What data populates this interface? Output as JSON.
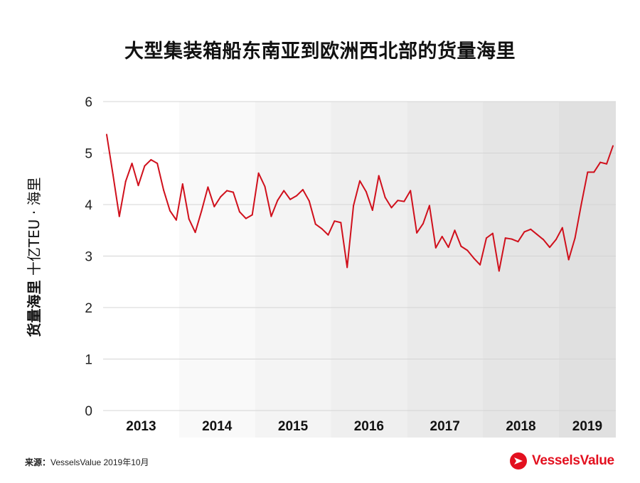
{
  "title": "大型集装箱船东南亚到欧洲西北部的货量海里",
  "source": {
    "label": "来源：",
    "text": "VesselsValue 2019年10月"
  },
  "logo": {
    "text": "VesselsValue",
    "color": "#e3101f"
  },
  "chart_data": {
    "type": "line",
    "title": "大型集装箱船东南亚到欧洲西北部的货量海里",
    "ylabel_bold": "货量海里",
    "ylabel_rest": " 十亿TEU · 海里",
    "ylim": [
      0,
      6
    ],
    "yticks": [
      "0",
      "1",
      "2",
      "3",
      "4",
      "5",
      "6"
    ],
    "line_color": "#d0101c",
    "band_colors": [
      "#ffffff",
      "#f9f9f9",
      "#f4f4f4",
      "#efefef",
      "#eaeaea",
      "#e5e5e5",
      "#e0e0e0"
    ],
    "years": [
      "2013",
      "2014",
      "2015",
      "2016",
      "2017",
      "2018",
      "2019"
    ],
    "months_per_year": [
      12,
      12,
      12,
      12,
      12,
      12,
      9
    ],
    "series": [
      {
        "values": [
          5.36,
          4.58,
          3.77,
          4.45,
          4.8,
          4.37,
          4.75,
          4.87,
          4.8,
          4.28,
          3.88,
          3.7,
          4.4,
          3.72,
          3.46,
          3.88,
          4.34,
          3.96,
          4.15,
          4.27,
          4.24,
          3.86,
          3.73,
          3.8,
          4.61,
          4.35,
          3.77,
          4.08,
          4.27,
          4.1,
          4.17,
          4.29,
          4.07,
          3.62,
          3.53,
          3.41,
          3.68,
          3.65,
          2.78,
          3.98,
          4.46,
          4.25,
          3.89,
          4.56,
          4.14,
          3.94,
          4.08,
          4.06,
          4.27,
          3.45,
          3.63,
          3.98,
          3.16,
          3.38,
          3.17,
          3.5,
          3.19,
          3.11,
          2.96,
          2.83,
          3.35,
          3.44,
          2.71,
          3.35,
          3.33,
          3.28,
          3.47,
          3.52,
          3.42,
          3.32,
          3.17,
          3.32,
          3.55,
          2.93,
          3.35,
          4.01,
          4.63,
          4.63,
          4.82,
          4.79,
          5.14
        ]
      }
    ],
    "grid": true,
    "legend": "none"
  }
}
